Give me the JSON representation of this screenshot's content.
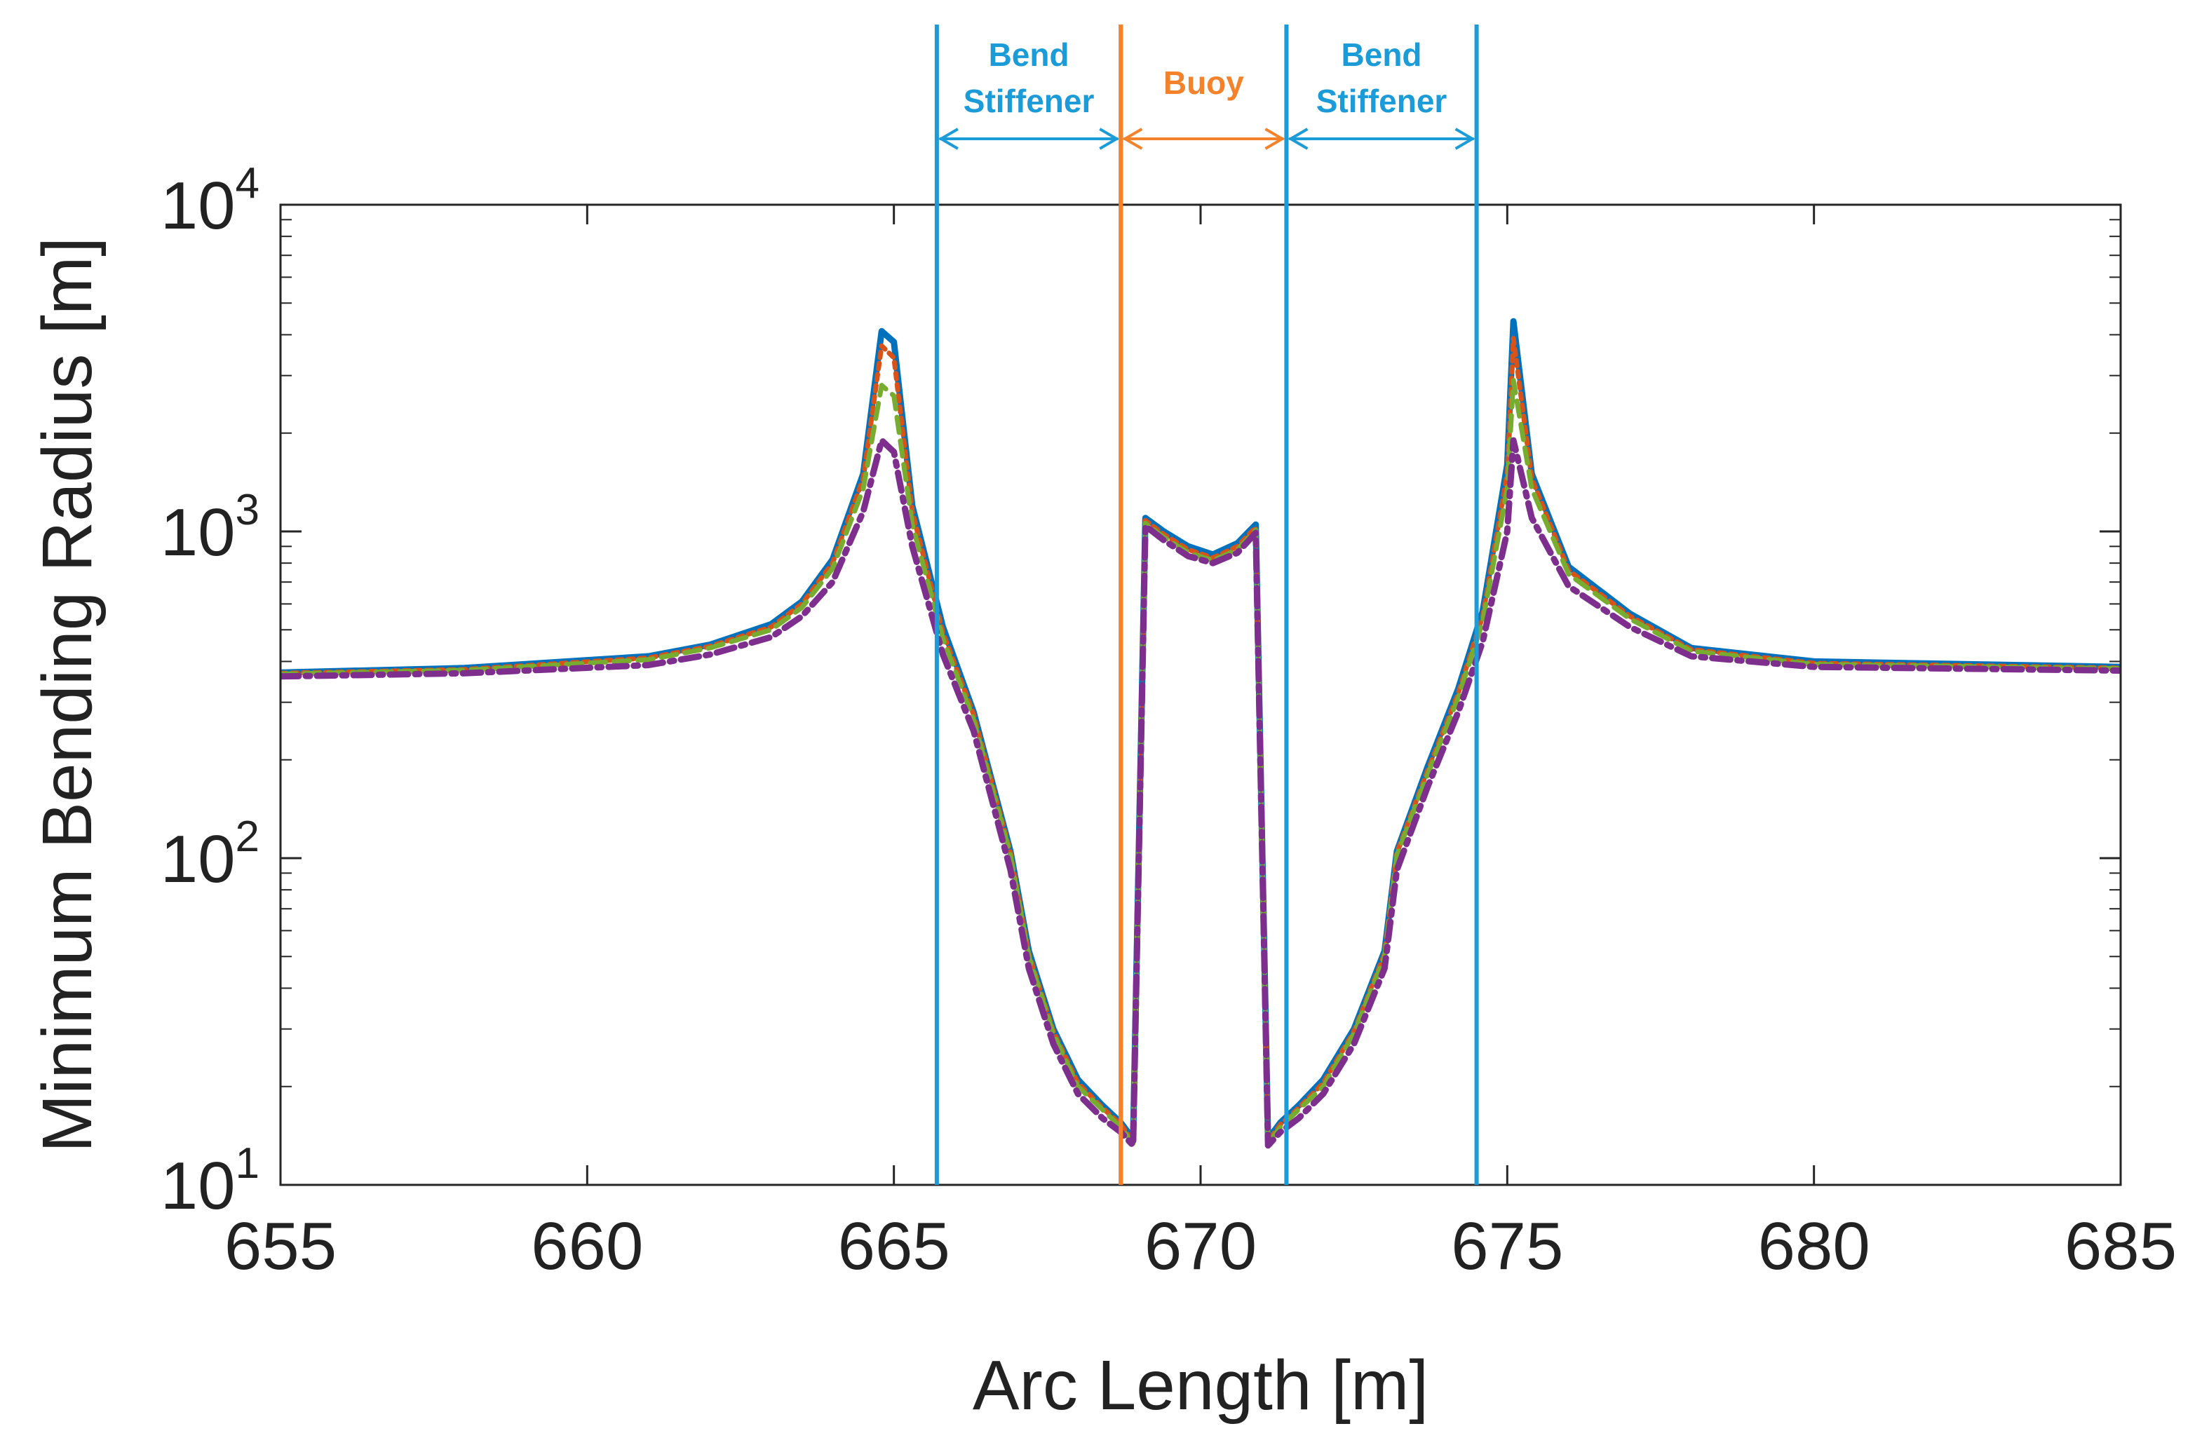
{
  "chart_data": {
    "type": "line",
    "xlabel": "Arc Length [m]",
    "ylabel": "Minimum Bending Radius [m]",
    "xlim": [
      655,
      685
    ],
    "ylim": [
      10,
      10000
    ],
    "yscale": "log",
    "xticks": [
      655,
      660,
      665,
      670,
      675,
      680,
      685
    ],
    "xtick_labels": [
      "655",
      "660",
      "665",
      "670",
      "675",
      "680",
      "685"
    ],
    "yticks": [
      {
        "value": 10,
        "base": "10",
        "exp": "1"
      },
      {
        "value": 100,
        "base": "10",
        "exp": "2"
      },
      {
        "value": 1000,
        "base": "10",
        "exp": "3"
      },
      {
        "value": 10000,
        "base": "10",
        "exp": "4"
      }
    ],
    "series": [
      {
        "name": "series-1",
        "color": "#0072BD",
        "dash": "",
        "width": 9,
        "x": [
          655,
          658,
          661,
          662,
          663,
          663.5,
          664,
          664.5,
          664.8,
          665,
          665.3,
          665.8,
          666.3,
          666.9,
          667.2,
          667.6,
          668.0,
          668.4,
          668.7,
          668.9,
          669.1,
          669.4,
          669.8,
          670.2,
          670.6,
          670.9,
          671.1,
          671.3,
          671.6,
          672.0,
          672.5,
          673.0,
          673.2,
          673.7,
          674.2,
          674.6,
          675.0,
          675.1,
          675.4,
          676.0,
          677.0,
          678.0,
          680.0,
          685
        ],
        "y": [
          370,
          382,
          415,
          450,
          520,
          610,
          820,
          1500,
          4100,
          3800,
          1200,
          510,
          280,
          105,
          52,
          30,
          21,
          17.5,
          15.5,
          13.8,
          1100,
          1000,
          900,
          850,
          920,
          1050,
          13.8,
          15.5,
          17.5,
          21,
          30,
          52,
          105,
          190,
          330,
          570,
          1600,
          4400,
          1500,
          780,
          560,
          440,
          400,
          385
        ]
      },
      {
        "name": "series-2",
        "color": "#D95319",
        "dash": "8 8",
        "width": 7,
        "x": [
          655,
          658,
          661,
          662,
          663,
          663.5,
          664,
          664.5,
          664.8,
          665,
          665.3,
          665.8,
          666.3,
          666.9,
          667.2,
          667.6,
          668.0,
          668.4,
          668.7,
          668.9,
          669.1,
          669.4,
          669.8,
          670.2,
          670.6,
          670.9,
          671.1,
          671.3,
          671.6,
          672.0,
          672.5,
          673.0,
          673.2,
          673.7,
          674.2,
          674.6,
          675.0,
          675.1,
          675.4,
          676.0,
          677.0,
          678.0,
          680.0,
          685
        ],
        "y": [
          368,
          378,
          410,
          445,
          510,
          600,
          800,
          1450,
          3700,
          3400,
          1150,
          490,
          275,
          104,
          51,
          29.5,
          20.5,
          17.2,
          15.3,
          13.6,
          1080,
          980,
          880,
          830,
          900,
          1030,
          13.6,
          15.3,
          17.2,
          20.5,
          29.5,
          51,
          104,
          185,
          320,
          550,
          1500,
          3900,
          1450,
          760,
          550,
          435,
          395,
          382
        ]
      },
      {
        "name": "series-3",
        "color": "#77AC30",
        "dash": "22 12",
        "width": 7,
        "x": [
          655,
          658,
          661,
          662,
          663,
          663.5,
          664,
          664.5,
          664.8,
          665,
          665.3,
          665.8,
          666.3,
          666.9,
          667.2,
          667.6,
          668.0,
          668.4,
          668.7,
          668.9,
          669.1,
          669.4,
          669.8,
          670.2,
          670.6,
          670.9,
          671.1,
          671.3,
          671.6,
          672.0,
          672.5,
          673.0,
          673.2,
          673.7,
          674.2,
          674.6,
          675.0,
          675.1,
          675.4,
          676.0,
          677.0,
          678.0,
          680.0,
          685
        ],
        "y": [
          366,
          376,
          405,
          440,
          500,
          585,
          770,
          1350,
          2800,
          2600,
          1050,
          470,
          265,
          102,
          50,
          29,
          20,
          17,
          15,
          13.4,
          1060,
          960,
          860,
          815,
          880,
          1010,
          13.4,
          15,
          17,
          20,
          29,
          50,
          102,
          180,
          310,
          530,
          1350,
          2900,
          1350,
          740,
          540,
          430,
          392,
          380
        ]
      },
      {
        "name": "series-4",
        "color": "#7E2F8E",
        "dash": "26 10 6 10",
        "width": 9,
        "x": [
          655,
          658,
          661,
          662,
          663,
          663.5,
          664,
          664.5,
          664.8,
          665,
          665.3,
          665.8,
          666.3,
          666.9,
          667.2,
          667.6,
          668.0,
          668.4,
          668.7,
          668.9,
          669.1,
          669.4,
          669.8,
          670.2,
          670.6,
          670.9,
          671.1,
          671.3,
          671.6,
          672.0,
          672.5,
          673.0,
          673.2,
          673.7,
          674.2,
          674.6,
          675.0,
          675.1,
          675.4,
          676.0,
          677.0,
          678.0,
          680.0,
          685
        ],
        "y": [
          360,
          368,
          390,
          420,
          475,
          550,
          700,
          1150,
          1900,
          1750,
          900,
          420,
          245,
          92,
          46,
          27,
          19,
          16,
          14.5,
          13.2,
          1040,
          940,
          840,
          800,
          860,
          990,
          13.2,
          14.5,
          16,
          19,
          27,
          46,
          92,
          165,
          280,
          460,
          1000,
          1900,
          1100,
          680,
          510,
          415,
          385,
          375
        ]
      }
    ],
    "regions": [
      {
        "label_lines": [
          "Bend",
          "Stiffener"
        ],
        "x0": 665.7,
        "x1": 668.7,
        "color": "#1B9BD7"
      },
      {
        "label_lines": [
          "Buoy"
        ],
        "x0": 668.7,
        "x1": 671.4,
        "color": "#F4822A"
      },
      {
        "label_lines": [
          "Bend",
          "Stiffener"
        ],
        "x0": 671.4,
        "x1": 674.5,
        "color": "#1B9BD7"
      }
    ]
  }
}
